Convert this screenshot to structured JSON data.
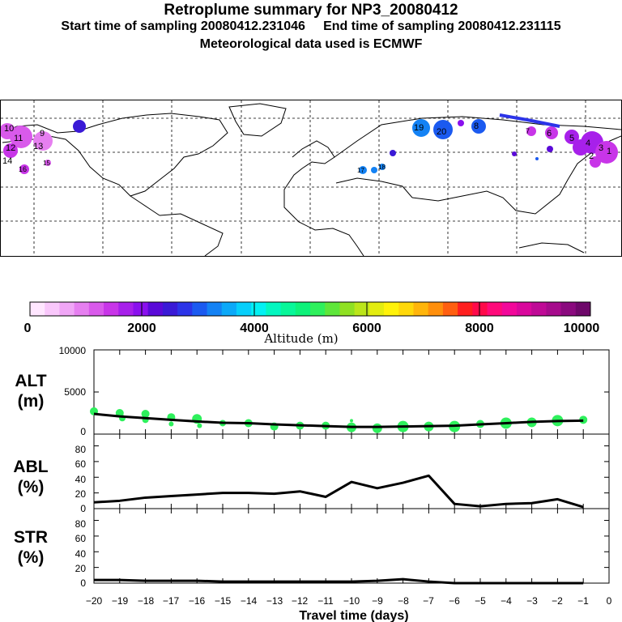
{
  "title": "Retroplume summary for NP3_20080412",
  "sampling_line": "Start time of sampling 20080412.231046     End time of sampling 20080412.231115",
  "met_line": "Meteorological data used is ECMWF",
  "map": {
    "plume_markers": [
      "10",
      "9",
      "11",
      "12",
      "13",
      "14",
      "15",
      "16",
      "17",
      "18",
      "19",
      "20",
      "8",
      "7",
      "6",
      "5",
      "4",
      "3",
      "2",
      "1"
    ]
  },
  "colorbar": {
    "label": "Altitude (m)",
    "ticks": [
      "0",
      "2000",
      "4000",
      "6000",
      "8000",
      "10000"
    ],
    "colors": [
      "#ffe6ff",
      "#f9c7fb",
      "#f0a6f6",
      "#e67ff0",
      "#d95aeb",
      "#c835e8",
      "#a720ea",
      "#8a10ee",
      "#5a0ad8",
      "#3a1ad6",
      "#2c34e8",
      "#1b5af0",
      "#1482f4",
      "#0ca9f8",
      "#07cffb",
      "#02f1f3",
      "#04f7c0",
      "#07f799",
      "#0df27a",
      "#2ef05c",
      "#5ee63a",
      "#8fe022",
      "#bbe51a",
      "#e3ec10",
      "#fff20a",
      "#ffd80a",
      "#ffb50b",
      "#ff8f0c",
      "#ff5f10",
      "#ff1f1f",
      "#ff0a4a",
      "#ff0a7a",
      "#f2089a",
      "#d9089c",
      "#bf0a96",
      "#a60b8c",
      "#8a0a7e",
      "#6e086a"
    ]
  },
  "chart_data": [
    {
      "type": "line",
      "ylabel_line1": "ALT",
      "ylabel_line2": "(m)",
      "ylim": [
        0,
        10000
      ],
      "yticks": [
        "0",
        "5000",
        "10000"
      ],
      "x": [
        -20,
        -19,
        -18,
        -17,
        -16,
        -15,
        -14,
        -13,
        -12,
        -11,
        -10,
        -9,
        -8,
        -7,
        -6,
        -5,
        -4,
        -3,
        -2,
        -1
      ],
      "series": [
        {
          "name": "altitude",
          "values": [
            2400,
            2100,
            1900,
            1700,
            1500,
            1350,
            1300,
            1150,
            1050,
            950,
            850,
            850,
            900,
            950,
            1000,
            1150,
            1300,
            1450,
            1550,
            1600
          ]
        }
      ],
      "points": [
        {
          "x": -20,
          "y": 2700,
          "r": 5
        },
        {
          "x": -19,
          "y": 2500,
          "r": 5
        },
        {
          "x": -18.9,
          "y": 1900,
          "r": 4
        },
        {
          "x": -18,
          "y": 2400,
          "r": 5
        },
        {
          "x": -18,
          "y": 1700,
          "r": 4
        },
        {
          "x": -17,
          "y": 2000,
          "r": 5
        },
        {
          "x": -17,
          "y": 1200,
          "r": 3
        },
        {
          "x": -16,
          "y": 1800,
          "r": 6
        },
        {
          "x": -15.9,
          "y": 1000,
          "r": 3
        },
        {
          "x": -15,
          "y": 1300,
          "r": 4
        },
        {
          "x": -14,
          "y": 1300,
          "r": 5
        },
        {
          "x": -13,
          "y": 900,
          "r": 5
        },
        {
          "x": -12,
          "y": 1000,
          "r": 5
        },
        {
          "x": -11,
          "y": 1000,
          "r": 5
        },
        {
          "x": -10,
          "y": 1600,
          "r": 2
        },
        {
          "x": -10,
          "y": 800,
          "r": 6
        },
        {
          "x": -9,
          "y": 700,
          "r": 6
        },
        {
          "x": -8,
          "y": 900,
          "r": 7
        },
        {
          "x": -7,
          "y": 900,
          "r": 6
        },
        {
          "x": -6,
          "y": 900,
          "r": 7
        },
        {
          "x": -5,
          "y": 1200,
          "r": 5
        },
        {
          "x": -4,
          "y": 1300,
          "r": 7
        },
        {
          "x": -3,
          "y": 1400,
          "r": 6
        },
        {
          "x": -2,
          "y": 1600,
          "r": 7
        },
        {
          "x": -1,
          "y": 1700,
          "r": 5
        }
      ]
    },
    {
      "type": "line",
      "ylabel_line1": "ABL",
      "ylabel_line2": "(%)",
      "ylim": [
        0,
        95
      ],
      "yticks": [
        "0",
        "20",
        "40",
        "60",
        "80"
      ],
      "x": [
        -20,
        -19,
        -18,
        -17,
        -16,
        -15,
        -14,
        -13,
        -12,
        -11,
        -10,
        -9,
        -8,
        -7,
        -6,
        -5,
        -4,
        -3,
        -2,
        -1
      ],
      "series": [
        {
          "name": "ABL fraction",
          "values": [
            8,
            10,
            14,
            16,
            18,
            20,
            20,
            19,
            22,
            15,
            34,
            26,
            33,
            42,
            6,
            3,
            6,
            7,
            12,
            2
          ]
        }
      ]
    },
    {
      "type": "line",
      "ylabel_line1": "STR",
      "ylabel_line2": "(%)",
      "ylim": [
        0,
        95
      ],
      "yticks": [
        "0",
        "20",
        "40",
        "60",
        "80"
      ],
      "x": [
        -20,
        -19,
        -18,
        -17,
        -16,
        -15,
        -14,
        -13,
        -12,
        -11,
        -10,
        -9,
        -8,
        -7,
        -6,
        -5,
        -4,
        -3,
        -2,
        -1
      ],
      "series": [
        {
          "name": "stratosphere fraction",
          "values": [
            4,
            4,
            3,
            3,
            3,
            2,
            2,
            2,
            2,
            2,
            2,
            3,
            5,
            2,
            0,
            0,
            0,
            0,
            0,
            0
          ]
        }
      ],
      "xticks": [
        "−20",
        "−19",
        "−18",
        "−17",
        "−16",
        "−15",
        "−14",
        "−13",
        "−12",
        "−11",
        "−10",
        "−9",
        "−8",
        "−7",
        "−6",
        "−5",
        "−4",
        "−3",
        "−2",
        "−1",
        "0"
      ],
      "xlabel": "Travel time (days)"
    }
  ]
}
